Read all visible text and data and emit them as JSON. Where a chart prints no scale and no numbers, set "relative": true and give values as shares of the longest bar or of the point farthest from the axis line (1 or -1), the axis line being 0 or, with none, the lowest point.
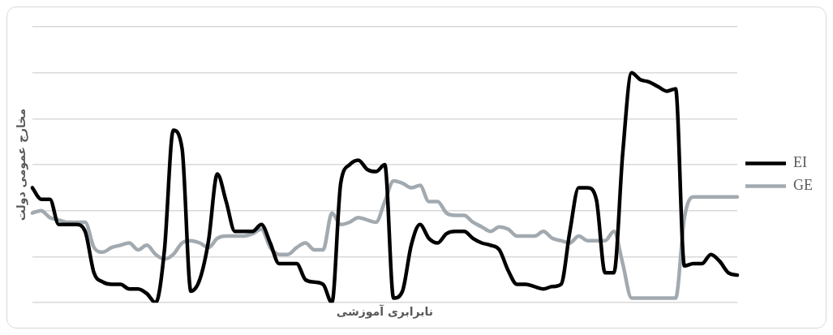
{
  "chart_data": {
    "type": "line",
    "xlabel": "نابرابری آموزشی",
    "ylabel": "مخارج عمومی دولت",
    "relative": true,
    "grid": "y",
    "legend": "right",
    "marker": "none",
    "line_style": "solid",
    "categories": [
      null,
      null,
      null,
      null,
      null,
      null,
      null,
      null,
      null,
      null,
      null,
      null,
      null,
      null,
      null,
      null,
      null,
      null,
      null,
      null,
      null,
      null,
      null,
      null,
      null,
      null,
      null,
      null,
      null,
      null,
      null,
      null,
      null,
      null,
      null,
      null,
      null,
      null,
      null,
      null,
      null,
      null,
      null,
      null,
      null,
      null,
      null,
      null,
      null,
      null,
      null,
      null,
      null,
      null,
      null,
      null,
      null,
      null,
      null,
      null,
      null,
      null,
      null,
      null,
      null,
      null,
      null,
      null,
      null,
      null,
      null,
      null,
      null,
      null,
      null,
      null,
      null,
      null,
      null,
      null,
      null
    ],
    "series": [
      {
        "name": "EI",
        "color": "#000000",
        "values": [
          0.5,
          0.45,
          0.45,
          0.34,
          0.34,
          0.34,
          0.31,
          0.13,
          0.09,
          0.08,
          0.08,
          0.06,
          0.06,
          0.04,
          0.0,
          0.23,
          0.75,
          0.67,
          0.05,
          0.1,
          0.27,
          0.56,
          0.44,
          0.31,
          0.31,
          0.31,
          0.34,
          0.26,
          0.17,
          0.17,
          0.17,
          0.1,
          0.09,
          0.08,
          0.0,
          0.52,
          0.6,
          0.62,
          0.58,
          0.57,
          0.6,
          0.02,
          0.05,
          0.25,
          0.34,
          0.28,
          0.26,
          0.3,
          0.31,
          0.31,
          0.28,
          0.26,
          0.25,
          0.23,
          0.14,
          0.08,
          0.08,
          0.07,
          0.06,
          0.07,
          0.08,
          0.31,
          0.5,
          0.5,
          0.45,
          0.13,
          0.13,
          0.65,
          1.0,
          0.97,
          0.96,
          0.94,
          0.92,
          0.93,
          0.16,
          0.17,
          0.17,
          0.21,
          0.18,
          0.13,
          0.12
        ]
      },
      {
        "name": "GE",
        "color": "#a2aab0",
        "values": [
          0.39,
          0.4,
          0.37,
          0.36,
          0.35,
          0.35,
          0.35,
          0.24,
          0.22,
          0.24,
          0.25,
          0.26,
          0.23,
          0.25,
          0.21,
          0.19,
          0.21,
          0.26,
          0.27,
          0.26,
          0.24,
          0.28,
          0.29,
          0.29,
          0.29,
          0.3,
          0.32,
          0.24,
          0.21,
          0.21,
          0.24,
          0.26,
          0.23,
          0.23,
          0.39,
          0.34,
          0.35,
          0.37,
          0.36,
          0.35,
          0.44,
          0.53,
          0.52,
          0.5,
          0.51,
          0.44,
          0.44,
          0.39,
          0.38,
          0.38,
          0.35,
          0.33,
          0.31,
          0.33,
          0.32,
          0.29,
          0.29,
          0.29,
          0.31,
          0.28,
          0.27,
          0.26,
          0.29,
          0.27,
          0.27,
          0.27,
          0.31,
          0.17,
          0.02,
          0.02,
          0.02,
          0.02,
          0.02,
          0.02,
          0.37,
          0.46,
          0.46,
          0.46,
          0.46,
          0.46,
          0.46
        ]
      }
    ]
  }
}
